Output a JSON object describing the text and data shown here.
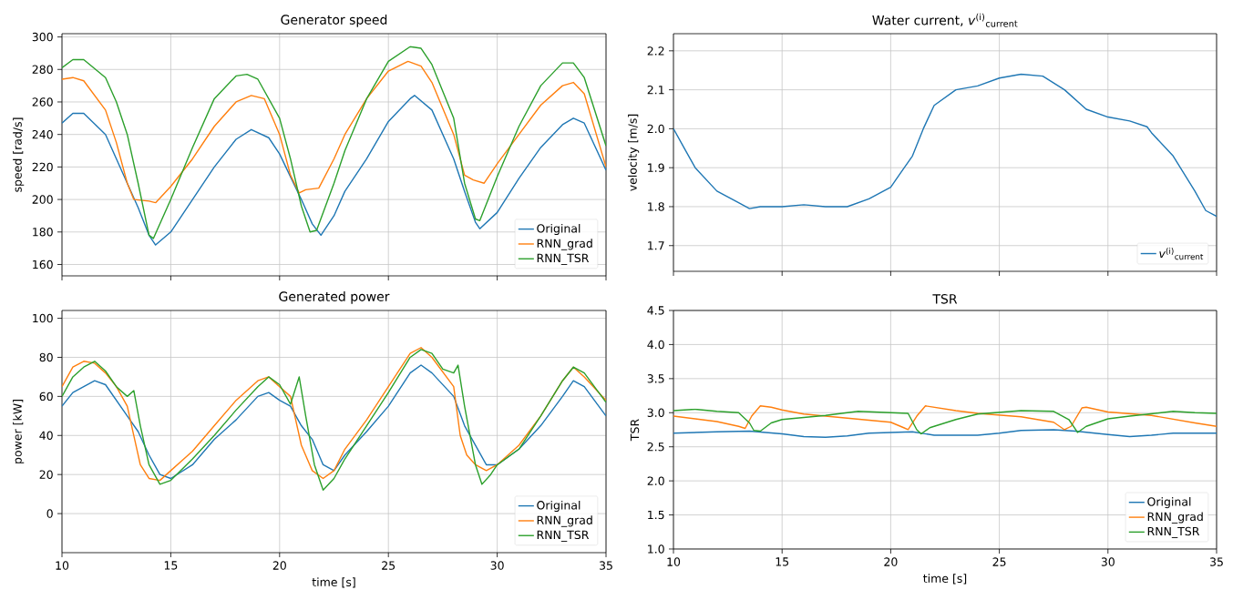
{
  "chart_data": [
    {
      "type": "line",
      "title": "Generator speed",
      "ylabel": "speed [rad/s]",
      "xlim": [
        10,
        35
      ],
      "xticks": [
        {
          "value": 10,
          "label": null
        },
        {
          "value": 15,
          "label": null
        },
        {
          "value": 20,
          "label": null
        },
        {
          "value": 25,
          "label": null
        },
        {
          "value": 30,
          "label": null
        },
        {
          "value": 35,
          "label": null
        }
      ],
      "ylim": [
        153,
        302
      ],
      "yticks": [
        160,
        180,
        200,
        220,
        240,
        260,
        280,
        300
      ],
      "grid": true,
      "legend": "bottom right",
      "tick_labels": "y",
      "series": [
        {
          "name": "Original",
          "color": "#1f77b4",
          "x": [
            10,
            10.5,
            11,
            12,
            13,
            13.5,
            14,
            14.3,
            15,
            16,
            17,
            18,
            18.7,
            19.5,
            20,
            21,
            21.5,
            21.9,
            22.5,
            23,
            24,
            25,
            26,
            26.2,
            27,
            28,
            28.5,
            29,
            29.2,
            30,
            31,
            32,
            33,
            33.5,
            34,
            35
          ],
          "values": [
            247,
            253,
            253,
            240,
            210,
            195,
            178,
            172,
            180,
            200,
            220,
            237,
            243,
            238,
            228,
            200,
            185,
            178,
            190,
            205,
            225,
            248,
            262,
            264,
            255,
            225,
            205,
            186,
            182,
            192,
            213,
            232,
            246,
            250,
            247,
            218
          ]
        },
        {
          "name": "RNN_grad",
          "color": "#ff7f0e",
          "x": [
            10,
            10.5,
            11,
            12,
            12.5,
            13,
            13.3,
            14,
            14.3,
            15,
            16,
            17,
            18,
            18.7,
            19.3,
            20,
            20.5,
            20.9,
            21.2,
            21.8,
            22.5,
            23,
            24,
            25,
            25.9,
            26.5,
            27,
            28,
            28.5,
            28.9,
            29.4,
            30,
            31,
            32,
            33,
            33.5,
            34,
            35
          ],
          "values": [
            274,
            275,
            273,
            255,
            235,
            210,
            200,
            199,
            198,
            208,
            225,
            245,
            260,
            264,
            262,
            240,
            215,
            204,
            206,
            207,
            225,
            240,
            262,
            279,
            285,
            282,
            272,
            240,
            215,
            212,
            210,
            222,
            240,
            258,
            270,
            272,
            265,
            220
          ]
        },
        {
          "name": "RNN_TSR",
          "color": "#2ca02c",
          "x": [
            10,
            10.5,
            11,
            12,
            12.5,
            13,
            13.5,
            14,
            14.2,
            15,
            16,
            17,
            18,
            18.5,
            19,
            20,
            20.5,
            21,
            21.4,
            21.7,
            22.5,
            23,
            24,
            25,
            26,
            26.5,
            27,
            28,
            28.5,
            29,
            29.2,
            30,
            31,
            32,
            33,
            33.5,
            34,
            35
          ],
          "values": [
            281,
            286,
            286,
            275,
            260,
            240,
            210,
            178,
            176,
            200,
            232,
            262,
            276,
            277,
            274,
            250,
            225,
            196,
            180,
            181,
            210,
            230,
            262,
            285,
            294,
            293,
            283,
            250,
            210,
            188,
            187,
            214,
            245,
            270,
            284,
            284,
            275,
            233
          ]
        }
      ]
    },
    {
      "type": "line",
      "title": "Water current, *v*$^{(i)}$$_{current}$",
      "ylabel": "velocity [m/s]",
      "xlim": [
        10,
        35
      ],
      "xticks": [
        {
          "value": 10,
          "label": null
        },
        {
          "value": 15,
          "label": null
        },
        {
          "value": 20,
          "label": null
        },
        {
          "value": 25,
          "label": null
        },
        {
          "value": 30,
          "label": null
        },
        {
          "value": 35,
          "label": null
        }
      ],
      "ylim": [
        1.634,
        2.244
      ],
      "yticks": [
        {
          "value": 1.7,
          "label": "1.7"
        },
        {
          "value": 1.8,
          "label": "1.8"
        },
        {
          "value": 1.9,
          "label": "1.9"
        },
        {
          "value": 2.0,
          "label": "2.0"
        },
        {
          "value": 2.1,
          "label": "2.1"
        },
        {
          "value": 2.2,
          "label": "2.2"
        }
      ],
      "grid": true,
      "legend": "bottom right",
      "tick_labels": "y",
      "series": [
        {
          "name": "*v*$^{(i)}$$_{current}$",
          "color": "#1f77b4",
          "x": [
            10,
            10.5,
            11,
            12,
            13,
            13.5,
            14,
            15,
            16,
            17,
            18,
            19,
            20,
            20.5,
            21,
            21.5,
            22,
            23,
            24,
            25,
            26,
            27,
            28,
            29,
            30,
            31,
            31.8,
            32,
            33,
            34,
            34.5,
            35
          ],
          "values": [
            2.0,
            1.95,
            1.9,
            1.84,
            1.81,
            1.795,
            1.8,
            1.8,
            1.805,
            1.8,
            1.8,
            1.82,
            1.85,
            1.89,
            1.93,
            2.0,
            2.06,
            2.1,
            2.11,
            2.13,
            2.14,
            2.135,
            2.1,
            2.05,
            2.03,
            2.02,
            2.005,
            1.99,
            1.93,
            1.84,
            1.79,
            1.775
          ]
        }
      ]
    },
    {
      "type": "line",
      "title": "Generated power",
      "xlabel": "time [s]",
      "ylabel": "power [kW]",
      "xlim": [
        10,
        35
      ],
      "xticks": [
        10,
        15,
        20,
        25,
        30,
        35
      ],
      "ylim": [
        -20,
        104
      ],
      "yticks": [
        0,
        20,
        40,
        60,
        80,
        100
      ],
      "grid": true,
      "legend": "bottom right",
      "series": [
        {
          "name": "Original",
          "color": "#1f77b4",
          "x": [
            10,
            10.5,
            11,
            11.5,
            12,
            12.5,
            13,
            13.5,
            14,
            14.5,
            15,
            16,
            17,
            18,
            19,
            19.5,
            20,
            20.5,
            21,
            21.5,
            22,
            22.5,
            23,
            24,
            25,
            26,
            26.5,
            27,
            28,
            28.5,
            29,
            29.5,
            30,
            31,
            32,
            33,
            33.5,
            34,
            35
          ],
          "values": [
            55,
            62,
            65,
            68,
            66,
            58,
            50,
            42,
            30,
            20,
            18,
            25,
            38,
            48,
            60,
            62,
            58,
            55,
            45,
            38,
            25,
            22,
            30,
            42,
            55,
            72,
            76,
            72,
            60,
            45,
            35,
            25,
            25,
            33,
            45,
            60,
            68,
            65,
            50
          ]
        },
        {
          "name": "RNN_grad",
          "color": "#ff7f0e",
          "x": [
            10,
            10.5,
            11,
            11.5,
            12,
            12.5,
            13,
            13.3,
            13.6,
            14,
            14.5,
            15,
            16,
            17,
            18,
            19,
            19.5,
            20,
            20.5,
            21,
            21.5,
            22,
            22.5,
            23,
            24,
            25,
            26,
            26.5,
            27,
            28,
            28.3,
            28.6,
            29,
            29.5,
            30,
            31,
            32,
            33,
            33.5,
            34,
            35
          ],
          "values": [
            65,
            75,
            78,
            77,
            72,
            65,
            55,
            40,
            25,
            18,
            17,
            22,
            32,
            45,
            58,
            68,
            70,
            65,
            60,
            35,
            22,
            18,
            22,
            33,
            48,
            65,
            82,
            85,
            80,
            65,
            40,
            30,
            25,
            22,
            25,
            35,
            50,
            68,
            75,
            70,
            58
          ]
        },
        {
          "name": "RNN_TSR",
          "color": "#2ca02c",
          "x": [
            10,
            10.5,
            11,
            11.5,
            12,
            12.5,
            13,
            13.3,
            13.6,
            14,
            14.5,
            15,
            16,
            17,
            18,
            19,
            19.5,
            20,
            20.5,
            20.9,
            21.2,
            21.6,
            22,
            22.5,
            23,
            24,
            25,
            26,
            26.5,
            27,
            27.5,
            28,
            28.2,
            28.5,
            29,
            29.3,
            29.7,
            30,
            31,
            32,
            33,
            33.5,
            34,
            35
          ],
          "values": [
            60,
            70,
            75,
            78,
            73,
            65,
            60,
            63,
            45,
            25,
            15,
            17,
            28,
            40,
            53,
            65,
            70,
            66,
            56,
            70,
            50,
            25,
            12,
            18,
            28,
            45,
            62,
            80,
            84,
            82,
            74,
            72,
            76,
            55,
            25,
            15,
            20,
            25,
            33,
            50,
            68,
            75,
            72,
            57
          ]
        }
      ]
    },
    {
      "type": "line",
      "title": "TSR",
      "xlabel": "time [s]",
      "ylabel": "TSR",
      "xlim": [
        10,
        35
      ],
      "xticks": [
        10,
        15,
        20,
        25,
        30,
        35
      ],
      "ylim": [
        1.0,
        4.5
      ],
      "yticks": [
        {
          "value": 1.0,
          "label": "1.0"
        },
        {
          "value": 1.5,
          "label": "1.5"
        },
        {
          "value": 2.0,
          "label": "2.0"
        },
        {
          "value": 2.5,
          "label": "2.5"
        },
        {
          "value": 3.0,
          "label": "3.0"
        },
        {
          "value": 3.5,
          "label": "3.5"
        },
        {
          "value": 4.0,
          "label": "4.0"
        },
        {
          "value": 4.5,
          "label": "4.5"
        }
      ],
      "grid": true,
      "legend": "bottom right",
      "series": [
        {
          "name": "Original",
          "color": "#1f77b4",
          "x": [
            10,
            12,
            13.5,
            15,
            16,
            17,
            18,
            19,
            21,
            22,
            24,
            25,
            26,
            27.5,
            28.5,
            30,
            31,
            32,
            33,
            35
          ],
          "values": [
            2.7,
            2.72,
            2.73,
            2.69,
            2.65,
            2.64,
            2.66,
            2.7,
            2.72,
            2.67,
            2.67,
            2.7,
            2.74,
            2.75,
            2.73,
            2.68,
            2.65,
            2.67,
            2.7,
            2.7
          ]
        },
        {
          "name": "RNN_grad",
          "color": "#ff7f0e",
          "x": [
            10,
            11,
            12,
            13,
            13.3,
            13.6,
            14,
            14.5,
            15,
            16,
            18,
            20,
            20.6,
            20.8,
            21.2,
            21.6,
            22,
            23,
            24,
            26,
            27.5,
            28,
            28.3,
            28.8,
            29,
            30,
            32,
            34,
            35
          ],
          "values": [
            2.95,
            2.91,
            2.87,
            2.8,
            2.77,
            2.95,
            3.1,
            3.08,
            3.04,
            2.98,
            2.92,
            2.86,
            2.78,
            2.75,
            2.95,
            3.1,
            3.08,
            3.03,
            2.99,
            2.94,
            2.86,
            2.75,
            2.8,
            3.07,
            3.08,
            3.01,
            2.96,
            2.85,
            2.8
          ]
        },
        {
          "name": "RNN_TSR",
          "color": "#2ca02c",
          "x": [
            10,
            11,
            12,
            13,
            13.5,
            13.7,
            14,
            14.5,
            15,
            17,
            18.5,
            20,
            20.8,
            21.2,
            21.4,
            21.8,
            23,
            24,
            26,
            27.5,
            28.2,
            28.6,
            29,
            30,
            31,
            33,
            34,
            35
          ],
          "values": [
            3.03,
            3.05,
            3.02,
            3.0,
            2.85,
            2.74,
            2.73,
            2.85,
            2.9,
            2.96,
            3.02,
            3.0,
            2.99,
            2.75,
            2.69,
            2.78,
            2.9,
            2.98,
            3.03,
            3.02,
            2.9,
            2.71,
            2.8,
            2.91,
            2.95,
            3.02,
            3.0,
            2.99
          ]
        }
      ]
    }
  ]
}
